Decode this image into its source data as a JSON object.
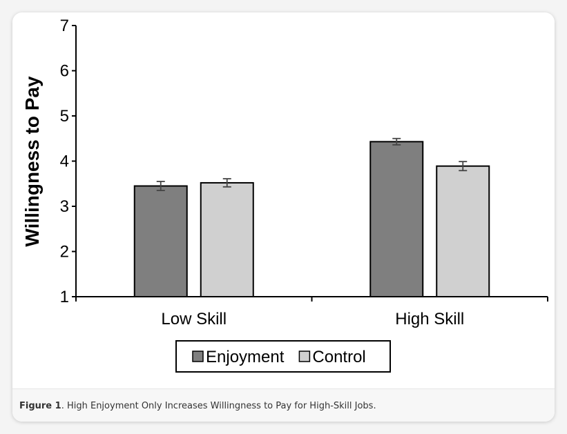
{
  "chart_data": {
    "type": "bar",
    "ylabel": "Willingness to Pay",
    "xlabel": "",
    "ylim": [
      1,
      7
    ],
    "yticks": [
      1,
      2,
      3,
      4,
      5,
      6,
      7
    ],
    "categories": [
      "Low Skill",
      "High Skill"
    ],
    "series": [
      {
        "name": "Enjoyment",
        "values": [
          3.45,
          4.43
        ],
        "errors": [
          0.1,
          0.07
        ],
        "color": "#7f7f7f"
      },
      {
        "name": "Control",
        "values": [
          3.52,
          3.89
        ],
        "errors": [
          0.09,
          0.1
        ],
        "color": "#d0d0d0"
      }
    ],
    "grid": false,
    "legend_position": "bottom"
  },
  "caption": {
    "label": "Figure 1",
    "text": ". High Enjoyment Only Increases Willingness to Pay for High-Skill Jobs."
  }
}
